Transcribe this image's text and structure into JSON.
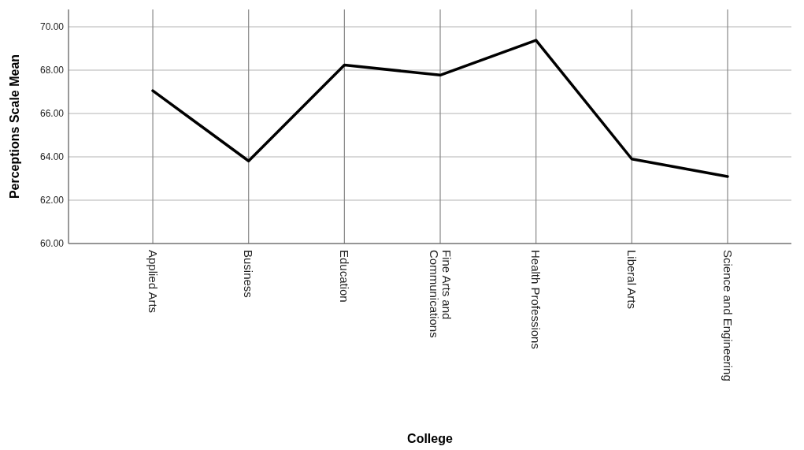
{
  "chart_data": {
    "type": "line",
    "xlabel": "College",
    "ylabel": "Perceptions Scale Mean",
    "categories": [
      "Applied Arts",
      "Business",
      "Education",
      "Fine Arts and\nCommunications",
      "Health Professions",
      "Liberal Arts",
      "Science and Engineering"
    ],
    "series": [
      {
        "color": "#000000",
        "values": [
          67.05,
          63.81,
          68.24,
          67.77,
          69.38,
          63.9,
          63.09
        ]
      }
    ],
    "ylim": [
      60,
      70.8
    ],
    "yticks": [
      {
        "value": 60,
        "label": "60.00"
      },
      {
        "value": 62,
        "label": "62.00"
      },
      {
        "value": 64,
        "label": "64.00"
      },
      {
        "value": 66,
        "label": "66.00"
      },
      {
        "value": 68,
        "label": "68.00"
      },
      {
        "value": 70,
        "label": "70.00"
      }
    ],
    "grid": true,
    "marker": "none",
    "line_style": "solid"
  }
}
